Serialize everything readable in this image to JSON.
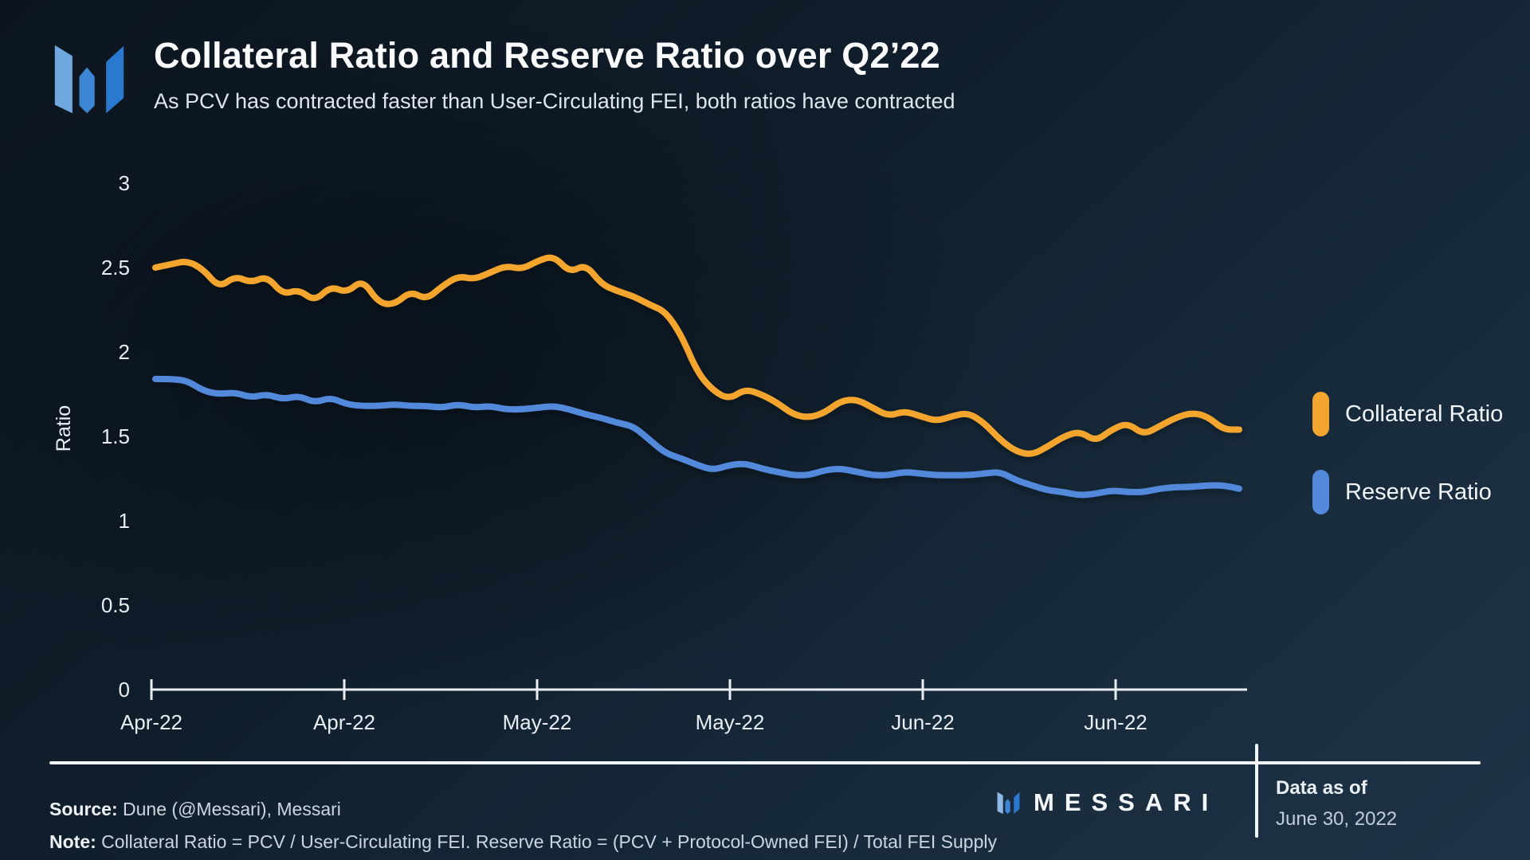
{
  "header": {
    "title": "Collateral Ratio and Reserve Ratio over Q2’22",
    "subtitle": "As PCV has contracted faster than User-Circulating FEI, both ratios have contracted"
  },
  "chart_data": {
    "type": "line",
    "title": "Collateral Ratio and Reserve Ratio over Q2’22",
    "xlabel": "",
    "ylabel": "Ratio",
    "ylim": [
      0,
      3
    ],
    "grid": false,
    "legend_position": "right",
    "y_tick_labels": [
      "3",
      "2.5",
      "2",
      "1.5",
      "1",
      "0.5",
      "0"
    ],
    "y_tick_values": [
      3,
      2.5,
      2,
      1.5,
      1,
      0.5,
      0
    ],
    "x_tick_labels": [
      "Apr-22",
      "Apr-22",
      "May-22",
      "May-22",
      "Jun-22",
      "Jun-22"
    ],
    "series": [
      {
        "name": "Collateral Ratio",
        "color": "#F4A52F",
        "values": [
          2.5,
          2.52,
          2.54,
          2.49,
          2.38,
          2.45,
          2.41,
          2.45,
          2.34,
          2.37,
          2.3,
          2.39,
          2.35,
          2.43,
          2.29,
          2.28,
          2.36,
          2.31,
          2.39,
          2.45,
          2.43,
          2.47,
          2.51,
          2.49,
          2.54,
          2.57,
          2.47,
          2.52,
          2.4,
          2.36,
          2.33,
          2.28,
          2.24,
          2.1,
          1.88,
          1.77,
          1.72,
          1.78,
          1.75,
          1.7,
          1.63,
          1.61,
          1.64,
          1.71,
          1.72,
          1.67,
          1.62,
          1.65,
          1.62,
          1.59,
          1.62,
          1.64,
          1.58,
          1.48,
          1.41,
          1.39,
          1.44,
          1.5,
          1.53,
          1.47,
          1.54,
          1.58,
          1.51,
          1.56,
          1.61,
          1.64,
          1.62,
          1.54,
          1.54
        ]
      },
      {
        "name": "Reserve Ratio",
        "color": "#5289DB",
        "values": [
          1.84,
          1.84,
          1.83,
          1.77,
          1.75,
          1.76,
          1.73,
          1.75,
          1.72,
          1.74,
          1.7,
          1.73,
          1.69,
          1.68,
          1.68,
          1.69,
          1.68,
          1.68,
          1.67,
          1.69,
          1.67,
          1.68,
          1.66,
          1.66,
          1.67,
          1.68,
          1.66,
          1.63,
          1.61,
          1.58,
          1.56,
          1.48,
          1.4,
          1.37,
          1.33,
          1.3,
          1.33,
          1.34,
          1.31,
          1.29,
          1.27,
          1.27,
          1.3,
          1.31,
          1.29,
          1.27,
          1.27,
          1.29,
          1.28,
          1.27,
          1.27,
          1.27,
          1.28,
          1.29,
          1.24,
          1.21,
          1.18,
          1.17,
          1.15,
          1.16,
          1.18,
          1.17,
          1.17,
          1.19,
          1.2,
          1.2,
          1.21,
          1.21,
          1.19
        ]
      }
    ]
  },
  "legend": {
    "items": [
      {
        "label": "Collateral Ratio",
        "color": "#F4A52F"
      },
      {
        "label": "Reserve Ratio",
        "color": "#5289DB"
      }
    ]
  },
  "footer": {
    "source_label": "Source:",
    "source_text": " Dune (@Messari), Messari",
    "note_label": "Note:",
    "note_text": " Collateral Ratio = PCV / User-Circulating FEI. Reserve Ratio = (PCV + Protocol-Owned FEI) / Total FEI Supply",
    "wordmark": "MESSARI",
    "data_as_of_label": "Data as of",
    "data_as_of_value": "June 30, 2022"
  },
  "icons": {
    "logo_left_color": "#6FA7DF",
    "logo_mid_color": "#3D86D6",
    "logo_right_color": "#2979CE"
  }
}
